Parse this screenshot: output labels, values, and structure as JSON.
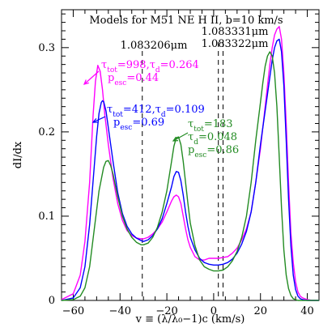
{
  "chart_data": {
    "type": "line",
    "title": "Models for M51 NE H II, b=10 km/s",
    "xlabel": "v ≡ (λ/λ₀−1)c (km/s)",
    "ylabel": "dI/dx",
    "xlim": [
      -65,
      45
    ],
    "ylim": [
      0,
      0.345
    ],
    "xticks": [
      -60,
      -40,
      -20,
      0,
      20,
      40
    ],
    "yticks": [
      0,
      0.1,
      0.2,
      0.3
    ],
    "ytick_labels": [
      "0",
      "0.1",
      "0.2",
      "0.3"
    ],
    "grid": false,
    "vlines": [
      {
        "x": -30.5,
        "label": "1.083206μm"
      },
      {
        "x": 2.0,
        "label": "1.083322μm"
      },
      {
        "x": 4.0,
        "label": "1.083331μm"
      }
    ],
    "series": [
      {
        "color": "#ff00ff",
        "annotation": {
          "tau_tot": "998",
          "tau_d": "0.264",
          "p_esc": "0.44"
        },
        "x": [
          -65,
          -60,
          -57,
          -55,
          -53,
          -51.5,
          -50.5,
          -49.5,
          -48.5,
          -47.5,
          -46.5,
          -45,
          -43,
          -41,
          -39,
          -37,
          -35,
          -33,
          -31,
          -30,
          -28,
          -26,
          -24,
          -22,
          -20,
          -18,
          -17,
          -16,
          -15,
          -14,
          -13,
          -12,
          -11,
          -10,
          -8,
          -6,
          -4,
          -2,
          0,
          2,
          4,
          6,
          8,
          10,
          12,
          14,
          16,
          18,
          20,
          22,
          23,
          24,
          25,
          26,
          27,
          28,
          29,
          30,
          31,
          32,
          33,
          34,
          35,
          36,
          37,
          38,
          40,
          42,
          45
        ],
        "y": [
          0.001,
          0.008,
          0.03,
          0.07,
          0.14,
          0.22,
          0.26,
          0.279,
          0.272,
          0.25,
          0.22,
          0.185,
          0.145,
          0.115,
          0.095,
          0.083,
          0.077,
          0.074,
          0.073,
          0.073,
          0.075,
          0.079,
          0.085,
          0.093,
          0.105,
          0.118,
          0.123,
          0.125,
          0.123,
          0.115,
          0.1,
          0.085,
          0.072,
          0.063,
          0.052,
          0.048,
          0.048,
          0.05,
          0.05,
          0.05,
          0.051,
          0.052,
          0.056,
          0.062,
          0.072,
          0.085,
          0.105,
          0.14,
          0.18,
          0.23,
          0.255,
          0.28,
          0.3,
          0.315,
          0.322,
          0.325,
          0.31,
          0.27,
          0.21,
          0.14,
          0.08,
          0.045,
          0.022,
          0.01,
          0.005,
          0.003,
          0.001,
          0.0,
          0.0
        ]
      },
      {
        "color": "#0000ff",
        "annotation": {
          "tau_tot": "412",
          "tau_d": "0.109",
          "p_esc": "0.69"
        },
        "x": [
          -65,
          -60,
          -57,
          -55,
          -53,
          -51,
          -50,
          -49,
          -48,
          -47.5,
          -47,
          -46,
          -45,
          -43,
          -41,
          -39,
          -37,
          -35,
          -33,
          -31,
          -30,
          -28,
          -26,
          -24,
          -22,
          -20,
          -18,
          -17,
          -16,
          -15,
          -14,
          -13,
          -12,
          -11,
          -10,
          -8,
          -6,
          -4,
          -2,
          0,
          2,
          4,
          6,
          8,
          10,
          12,
          14,
          16,
          18,
          20,
          22,
          23,
          24,
          25,
          26,
          27,
          28,
          29,
          30,
          31,
          32,
          33,
          34,
          35,
          36,
          37,
          38,
          40,
          42,
          45
        ],
        "y": [
          0.0,
          0.003,
          0.015,
          0.04,
          0.09,
          0.16,
          0.195,
          0.222,
          0.235,
          0.237,
          0.236,
          0.225,
          0.205,
          0.165,
          0.128,
          0.103,
          0.088,
          0.079,
          0.074,
          0.071,
          0.07,
          0.072,
          0.077,
          0.085,
          0.097,
          0.115,
          0.135,
          0.147,
          0.153,
          0.152,
          0.142,
          0.125,
          0.105,
          0.088,
          0.075,
          0.06,
          0.05,
          0.045,
          0.043,
          0.042,
          0.042,
          0.043,
          0.045,
          0.049,
          0.056,
          0.067,
          0.082,
          0.105,
          0.14,
          0.185,
          0.225,
          0.245,
          0.265,
          0.285,
          0.3,
          0.308,
          0.31,
          0.295,
          0.255,
          0.19,
          0.12,
          0.065,
          0.03,
          0.013,
          0.005,
          0.002,
          0.001,
          0.0,
          0.0,
          0.0
        ]
      },
      {
        "color": "#228b22",
        "annotation": {
          "tau_tot": "183",
          "tau_d": "0.048",
          "p_esc": "0.86"
        },
        "x": [
          -65,
          -60,
          -57,
          -55,
          -53,
          -51,
          -49,
          -47,
          -46,
          -45,
          -44,
          -43,
          -41,
          -39,
          -37,
          -35,
          -33,
          -31,
          -30,
          -28,
          -26,
          -24,
          -22,
          -20,
          -18,
          -17,
          -16,
          -15,
          -14,
          -13,
          -12,
          -11,
          -10,
          -8,
          -6,
          -4,
          -2,
          0,
          2,
          4,
          6,
          8,
          10,
          12,
          14,
          16,
          18,
          20,
          21,
          22,
          23,
          24,
          25,
          26,
          27,
          28,
          29,
          30,
          31,
          32,
          33,
          34,
          35,
          36,
          38,
          40,
          42,
          45
        ],
        "y": [
          0.0,
          0.001,
          0.005,
          0.015,
          0.04,
          0.085,
          0.13,
          0.158,
          0.165,
          0.166,
          0.16,
          0.15,
          0.123,
          0.1,
          0.085,
          0.075,
          0.069,
          0.066,
          0.066,
          0.068,
          0.075,
          0.087,
          0.105,
          0.13,
          0.165,
          0.183,
          0.193,
          0.194,
          0.185,
          0.165,
          0.14,
          0.115,
          0.092,
          0.065,
          0.048,
          0.04,
          0.037,
          0.035,
          0.035,
          0.036,
          0.04,
          0.047,
          0.058,
          0.075,
          0.1,
          0.14,
          0.19,
          0.235,
          0.258,
          0.278,
          0.29,
          0.295,
          0.29,
          0.27,
          0.23,
          0.17,
          0.11,
          0.06,
          0.03,
          0.014,
          0.006,
          0.002,
          0.001,
          0.0,
          0.0,
          0.0,
          0.0,
          0.0
        ]
      }
    ]
  }
}
